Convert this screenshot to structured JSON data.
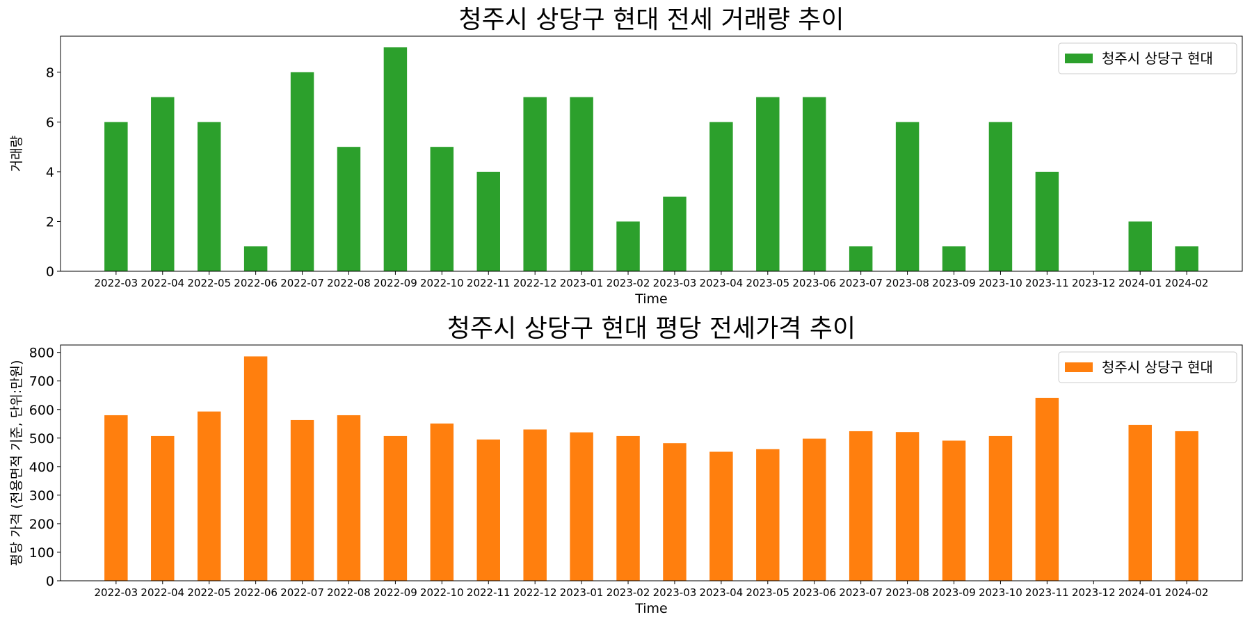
{
  "chart_data": [
    {
      "type": "bar",
      "title": "청주시 상당구 현대 전세 거래량 추이",
      "xlabel": "Time",
      "ylabel": "거래량",
      "categories": [
        "2022-03",
        "2022-04",
        "2022-05",
        "2022-06",
        "2022-07",
        "2022-08",
        "2022-09",
        "2022-10",
        "2022-11",
        "2022-12",
        "2023-01",
        "2023-02",
        "2023-03",
        "2023-04",
        "2023-05",
        "2023-06",
        "2023-07",
        "2023-08",
        "2023-09",
        "2023-10",
        "2023-11",
        "2023-12",
        "2024-01",
        "2024-02"
      ],
      "series": [
        {
          "name": "청주시 상당구 현대",
          "color": "#2ca02c",
          "values": [
            6,
            7,
            6,
            1,
            8,
            5,
            9,
            5,
            4,
            7,
            7,
            2,
            3,
            6,
            7,
            7,
            1,
            6,
            1,
            6,
            4,
            0,
            2,
            1
          ]
        }
      ],
      "ylim": [
        0,
        9.45
      ],
      "yticks": [
        0,
        2,
        4,
        6,
        8
      ],
      "grid": false,
      "legend": "top-right"
    },
    {
      "type": "bar",
      "title": "청주시 상당구 현대 평당 전세가격 추이",
      "xlabel": "Time",
      "ylabel": "평당 가격 (전용면적 기준, 단위:만원)",
      "categories": [
        "2022-03",
        "2022-04",
        "2022-05",
        "2022-06",
        "2022-07",
        "2022-08",
        "2022-09",
        "2022-10",
        "2022-11",
        "2022-12",
        "2023-01",
        "2023-02",
        "2023-03",
        "2023-04",
        "2023-05",
        "2023-06",
        "2023-07",
        "2023-08",
        "2023-09",
        "2023-10",
        "2023-11",
        "2023-12",
        "2024-01",
        "2024-02"
      ],
      "series": [
        {
          "name": "청주시 상당구 현대",
          "color": "#ff7f0e",
          "values": [
            580,
            507,
            593,
            786,
            563,
            580,
            507,
            551,
            495,
            530,
            520,
            507,
            482,
            452,
            461,
            498,
            524,
            521,
            491,
            507,
            641,
            null,
            546,
            524
          ]
        }
      ],
      "ylim": [
        0,
        826
      ],
      "yticks": [
        0,
        100,
        200,
        300,
        400,
        500,
        600,
        700,
        800
      ],
      "grid": false,
      "legend": "top-right"
    }
  ]
}
